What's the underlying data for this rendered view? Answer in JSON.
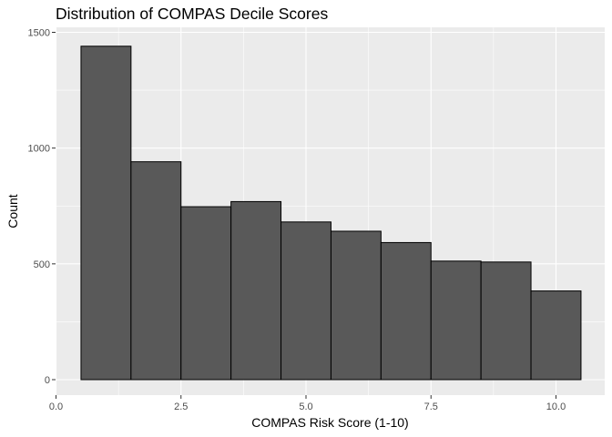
{
  "chart_data": {
    "type": "bar",
    "title": "Distribution of COMPAS Decile Scores",
    "xlabel": "COMPAS Risk Score (1-10)",
    "ylabel": "Count",
    "bins": [
      {
        "x_start": 0.5,
        "x_end": 1.5,
        "value": 1440
      },
      {
        "x_start": 1.5,
        "x_end": 2.5,
        "value": 941
      },
      {
        "x_start": 2.5,
        "x_end": 3.5,
        "value": 747
      },
      {
        "x_start": 3.5,
        "x_end": 4.5,
        "value": 769
      },
      {
        "x_start": 4.5,
        "x_end": 5.5,
        "value": 681
      },
      {
        "x_start": 5.5,
        "x_end": 6.5,
        "value": 641
      },
      {
        "x_start": 6.5,
        "x_end": 7.5,
        "value": 592
      },
      {
        "x_start": 7.5,
        "x_end": 8.5,
        "value": 512
      },
      {
        "x_start": 8.5,
        "x_end": 9.5,
        "value": 508
      },
      {
        "x_start": 9.5,
        "x_end": 10.5,
        "value": 383
      }
    ],
    "x_ticks": [
      {
        "value": 0.0,
        "label": "0.0"
      },
      {
        "value": 2.5,
        "label": "2.5"
      },
      {
        "value": 5.0,
        "label": "5.0"
      },
      {
        "value": 7.5,
        "label": "7.5"
      },
      {
        "value": 10.0,
        "label": "10.0"
      }
    ],
    "y_ticks": [
      {
        "value": 0,
        "label": "0"
      },
      {
        "value": 500,
        "label": "500"
      },
      {
        "value": 1000,
        "label": "1000"
      },
      {
        "value": 1500,
        "label": "1500"
      }
    ],
    "xlim": [
      0,
      10.8
    ],
    "ylim": [
      0,
      1500
    ],
    "grid": true,
    "bar_color": "#595959",
    "bar_edge_color": "#000000",
    "panel_color": "#ebebeb",
    "grid_color": "#ffffff"
  }
}
